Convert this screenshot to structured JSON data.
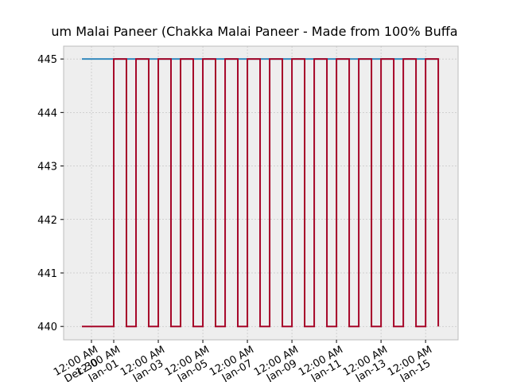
{
  "chart_data": {
    "type": "line",
    "drawstyle": "steps-post",
    "title": "um Malai Paneer (Chakka Malai Paneer - Made from 100% Buffa",
    "series": [
      {
        "color": "#348ABD",
        "x": [
          -0.43,
          15.57
        ],
        "values": [
          445,
          445
        ]
      },
      {
        "color": "#A60628",
        "x": [
          -0.43,
          1,
          1.57,
          2,
          2.57,
          3,
          3.57,
          4,
          4.57,
          5,
          5.57,
          6,
          6.57,
          7,
          7.57,
          8,
          8.57,
          9,
          9.57,
          10,
          10.57,
          11,
          11.57,
          12,
          12.57,
          13,
          13.57,
          14,
          14.57,
          15,
          15.57
        ],
        "values": [
          440,
          445,
          440,
          445,
          440,
          445,
          440,
          445,
          440,
          445,
          440,
          445,
          440,
          445,
          440,
          445,
          440,
          445,
          440,
          445,
          440,
          445,
          440,
          445,
          440,
          445,
          440,
          445,
          440,
          445,
          440
        ]
      }
    ],
    "xlim": [
      -1.25,
      16.46
    ],
    "xticks": [
      {
        "value": 0,
        "label": "12:00 AM\nDec-30"
      },
      {
        "value": 1,
        "label": "12:00 AM\nJan-01"
      },
      {
        "value": 3,
        "label": "12:00 AM\nJan-03"
      },
      {
        "value": 5,
        "label": "12:00 AM\nJan-05"
      },
      {
        "value": 7,
        "label": "12:00 AM\nJan-07"
      },
      {
        "value": 9,
        "label": "12:00 AM\nJan-09"
      },
      {
        "value": 11,
        "label": "12:00 AM\nJan-11"
      },
      {
        "value": 13,
        "label": "12:00 AM\nJan-13"
      },
      {
        "value": 15,
        "label": "12:00 AM\nJan-15"
      }
    ],
    "ylim": [
      439.75,
      445.24
    ],
    "yticks": [
      440,
      441,
      442,
      443,
      444,
      445
    ],
    "grid": true
  }
}
